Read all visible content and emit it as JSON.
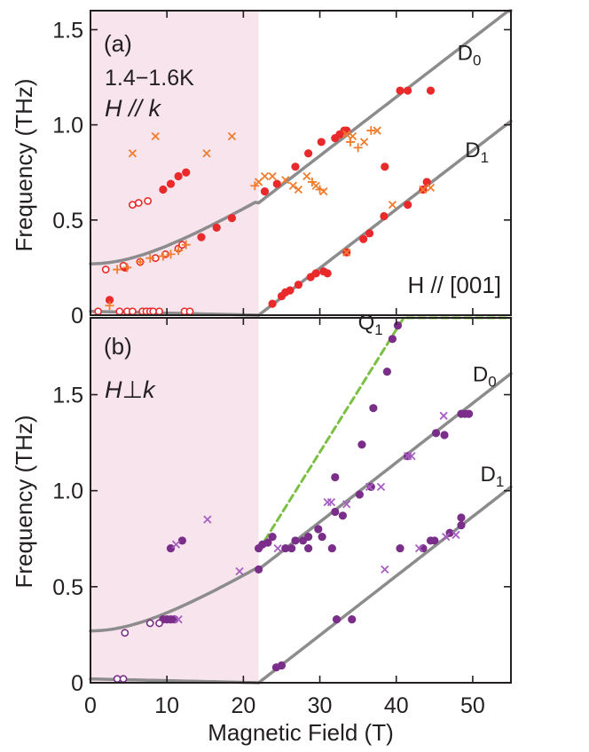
{
  "colors": {
    "shade": "#f8e4ec",
    "curve": "#8c8c8c",
    "red": "#ea2a2a",
    "orange": "#f07d2e",
    "purple": "#7a2e8a",
    "lightpurple": "#a75fc0",
    "green": "#7cc043",
    "axis": "#231f20"
  },
  "chart_data": [
    {
      "type": "scatter",
      "panel_label": "(a)",
      "annotations": {
        "temperature": "1.4−1.6K",
        "geometry": "H // k",
        "direction": "H // [001]"
      },
      "ylabel": "Frequency (THz)",
      "xlabel": "",
      "xlim": [
        0,
        55
      ],
      "ylim": [
        0,
        1.6
      ],
      "shaded_region": [
        0,
        22
      ],
      "x_ticks": [
        0,
        10,
        20,
        30,
        40,
        50
      ],
      "y_ticks": [
        0,
        0.5,
        1.0,
        1.5
      ],
      "y_tick_labels": [
        "0",
        "0.5",
        "1.0",
        "1.5"
      ],
      "curves": [
        {
          "name": "D0",
          "label": "D",
          "sub": "0",
          "label_at": [
            48,
            1.34
          ]
        },
        {
          "name": "D1",
          "label": "D",
          "sub": "1",
          "label_at": [
            49,
            0.83
          ]
        },
        {
          "name": "lower branch",
          "label": "",
          "sub": ""
        }
      ],
      "series": [
        {
          "name": "filled",
          "marker": "filled",
          "color": "red",
          "points": [
            [
              2.5,
              0.08
            ],
            [
              4.5,
              0.25
            ],
            [
              9.5,
              0.66
            ],
            [
              10.5,
              0.69
            ],
            [
              11.5,
              0.73
            ],
            [
              12.5,
              0.75
            ],
            [
              14.5,
              0.41
            ],
            [
              16.5,
              0.46
            ],
            [
              18.5,
              0.51
            ],
            [
              22.8,
              0.65
            ],
            [
              23.8,
              0.06
            ],
            [
              24.4,
              0.69
            ],
            [
              25.0,
              0.1
            ],
            [
              25.5,
              0.12
            ],
            [
              26.1,
              0.13
            ],
            [
              26.8,
              0.78
            ],
            [
              27.2,
              0.16
            ],
            [
              28.5,
              0.85
            ],
            [
              28.8,
              0.2
            ],
            [
              29.5,
              0.22
            ],
            [
              30.5,
              0.23
            ],
            [
              30.2,
              0.91
            ],
            [
              31.0,
              0.22
            ],
            [
              32.0,
              0.93
            ],
            [
              32.6,
              0.95
            ],
            [
              33.2,
              0.97
            ],
            [
              33.5,
              0.97
            ],
            [
              33.5,
              0.33
            ],
            [
              35.7,
              0.4
            ],
            [
              36.5,
              0.43
            ],
            [
              38.5,
              0.78
            ],
            [
              38.4,
              0.52
            ],
            [
              40.5,
              1.18
            ],
            [
              41.5,
              1.18
            ],
            [
              41.5,
              0.58
            ],
            [
              43.5,
              0.66
            ],
            [
              44.0,
              0.7
            ],
            [
              44.5,
              1.18
            ]
          ]
        },
        {
          "name": "open",
          "marker": "open",
          "color": "red",
          "points": [
            [
              1.0,
              0.02
            ],
            [
              2.0,
              0.24
            ],
            [
              3.8,
              0.02
            ],
            [
              4.3,
              0.26
            ],
            [
              4.8,
              0.02
            ],
            [
              5.5,
              0.02
            ],
            [
              5.5,
              0.58
            ],
            [
              6.3,
              0.59
            ],
            [
              6.5,
              0.28
            ],
            [
              6.8,
              0.02
            ],
            [
              7.5,
              0.6
            ],
            [
              7.3,
              0.02
            ],
            [
              7.8,
              0.02
            ],
            [
              8.2,
              0.02
            ],
            [
              8.5,
              0.3
            ],
            [
              9.0,
              0.02
            ],
            [
              9.8,
              0.32
            ],
            [
              11.5,
              0.35
            ],
            [
              12.0,
              0.37
            ],
            [
              12.3,
              0.02
            ],
            [
              13.0,
              0.02
            ]
          ]
        },
        {
          "name": "cross",
          "marker": "x",
          "color": "orange",
          "points": [
            [
              5.5,
              0.85
            ],
            [
              8.5,
              0.94
            ],
            [
              15.2,
              0.85
            ],
            [
              18.5,
              0.94
            ],
            [
              22.0,
              0.7
            ],
            [
              22.8,
              0.73
            ],
            [
              23.8,
              0.73
            ],
            [
              25.5,
              0.71
            ],
            [
              26.5,
              0.68
            ],
            [
              27.2,
              0.66
            ],
            [
              28.3,
              0.73
            ],
            [
              29.5,
              0.68
            ],
            [
              30.5,
              0.65
            ],
            [
              33.5,
              0.95
            ],
            [
              34.3,
              0.94
            ],
            [
              35.8,
              0.91
            ],
            [
              37.5,
              0.97
            ],
            [
              33.5,
              0.33
            ],
            [
              39.5,
              0.58
            ],
            [
              43.5,
              0.66
            ],
            [
              44.5,
              0.67
            ]
          ]
        },
        {
          "name": "plus",
          "marker": "+",
          "color": "orange",
          "points": [
            [
              2.5,
              0.05
            ],
            [
              3.5,
              0.24
            ],
            [
              4.8,
              0.25
            ],
            [
              6.5,
              0.28
            ],
            [
              7.8,
              0.3
            ],
            [
              9.5,
              0.31
            ],
            [
              10.5,
              0.32
            ],
            [
              11.5,
              0.34
            ],
            [
              12.5,
              0.37
            ],
            [
              21.5,
              0.68
            ],
            [
              29.0,
              0.7
            ],
            [
              30.0,
              0.66
            ],
            [
              34.0,
              0.91
            ],
            [
              35.0,
              0.88
            ],
            [
              36.7,
              0.97
            ]
          ]
        }
      ]
    },
    {
      "type": "scatter",
      "panel_label": "(b)",
      "annotations": {
        "geometry": "H⊥k"
      },
      "ylabel": "Frequency (THz)",
      "xlabel": "Magnetic Field (T)",
      "xlim": [
        0,
        55
      ],
      "ylim": [
        0,
        1.9
      ],
      "shaded_region": [
        0,
        22
      ],
      "x_ticks": [
        0,
        10,
        20,
        30,
        40,
        50
      ],
      "x_tick_labels": [
        "0",
        "10",
        "20",
        "30",
        "40",
        "50"
      ],
      "y_ticks": [
        0,
        0.5,
        1.0,
        1.5
      ],
      "y_tick_labels": [
        "0",
        "0.5",
        "1.0",
        "1.5"
      ],
      "curves": [
        {
          "name": "D0",
          "label": "D",
          "sub": "0",
          "label_at": [
            50,
            1.57
          ]
        },
        {
          "name": "D1",
          "label": "D",
          "sub": "1",
          "label_at": [
            51,
            1.05
          ]
        },
        {
          "name": "Q1",
          "label": "Q",
          "sub": "1",
          "label_at": [
            35,
            1.84
          ]
        },
        {
          "name": "lower branch",
          "label": "",
          "sub": ""
        }
      ],
      "series": [
        {
          "name": "filled",
          "marker": "filled",
          "color": "purple",
          "points": [
            [
              9.5,
              0.33
            ],
            [
              10.0,
              0.33
            ],
            [
              10.5,
              0.33
            ],
            [
              11.0,
              0.33
            ],
            [
              10.5,
              0.7
            ],
            [
              12.0,
              0.74
            ],
            [
              22.0,
              0.59
            ],
            [
              22.0,
              0.7
            ],
            [
              22.5,
              0.72
            ],
            [
              23.2,
              0.73
            ],
            [
              23.8,
              0.76
            ],
            [
              24.3,
              0.08
            ],
            [
              25.0,
              0.09
            ],
            [
              25.5,
              0.7
            ],
            [
              26.3,
              0.7
            ],
            [
              26.8,
              0.74
            ],
            [
              27.8,
              0.74
            ],
            [
              28.5,
              0.76
            ],
            [
              28.5,
              0.7
            ],
            [
              29.8,
              0.8
            ],
            [
              30.3,
              0.76
            ],
            [
              31.6,
              0.7
            ],
            [
              32.0,
              0.89
            ],
            [
              32.0,
              1.07
            ],
            [
              33.0,
              0.87
            ],
            [
              32.2,
              0.33
            ],
            [
              34.2,
              0.33
            ],
            [
              35.5,
              1.24
            ],
            [
              35.2,
              0.98
            ],
            [
              36.7,
              1.02
            ],
            [
              37.0,
              1.43
            ],
            [
              38.8,
              1.62
            ],
            [
              39.5,
              1.79
            ],
            [
              40.2,
              1.86
            ],
            [
              40.5,
              0.7
            ],
            [
              41.5,
              1.18
            ],
            [
              43.5,
              0.7
            ],
            [
              44.5,
              0.74
            ],
            [
              45.0,
              0.74
            ],
            [
              45.2,
              1.3
            ],
            [
              46.3,
              1.29
            ],
            [
              47.0,
              0.78
            ],
            [
              48.5,
              0.82
            ],
            [
              48.5,
              0.86
            ],
            [
              48.5,
              1.4
            ],
            [
              49.0,
              1.4
            ],
            [
              49.5,
              1.4
            ]
          ]
        },
        {
          "name": "open",
          "marker": "open",
          "color": "purple",
          "points": [
            [
              3.5,
              0.02
            ],
            [
              4.3,
              0.02
            ],
            [
              4.5,
              0.26
            ],
            [
              7.8,
              0.31
            ],
            [
              9.0,
              0.31
            ]
          ]
        },
        {
          "name": "cross",
          "marker": "x",
          "color": "lightpurple",
          "points": [
            [
              11.2,
              0.72
            ],
            [
              11.5,
              0.33
            ],
            [
              15.3,
              0.85
            ],
            [
              19.5,
              0.58
            ],
            [
              24.5,
              0.7
            ],
            [
              31.0,
              0.94
            ],
            [
              31.5,
              0.94
            ],
            [
              33.5,
              0.93
            ],
            [
              36.5,
              1.02
            ],
            [
              38.0,
              1.02
            ],
            [
              38.5,
              0.59
            ],
            [
              41.5,
              1.18
            ],
            [
              42.0,
              1.18
            ],
            [
              43.0,
              0.7
            ],
            [
              46.2,
              1.39
            ],
            [
              46.5,
              0.76
            ],
            [
              47.8,
              0.77
            ]
          ]
        }
      ]
    }
  ]
}
